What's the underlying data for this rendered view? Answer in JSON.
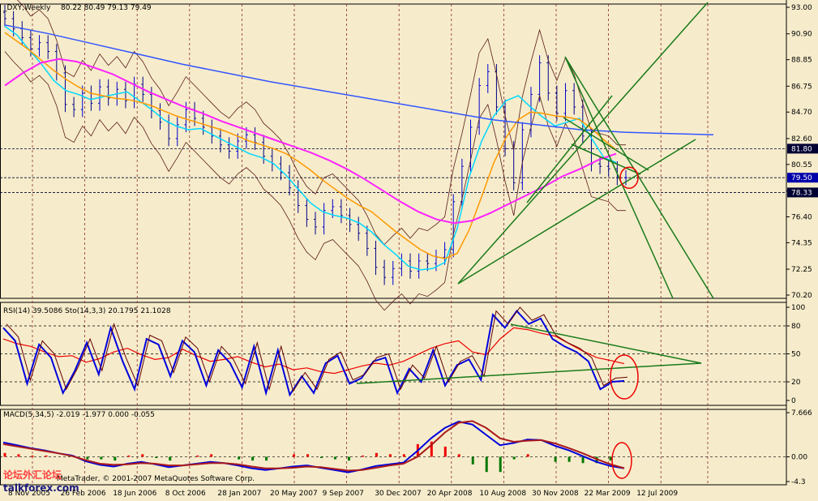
{
  "chart_data": [
    {
      "type": "line",
      "title": "_DXY,Weekly",
      "ohlc_readout": "80.22 80.49 79.13 79.49",
      "yticks": [
        "93.00",
        "90.90",
        "88.85",
        "86.75",
        "84.70",
        "82.60",
        "80.55",
        "78.45",
        "76.40",
        "74.35",
        "72.25",
        "70.20"
      ],
      "ylim": [
        70.2,
        93.0
      ],
      "price_markers": [
        {
          "label": "81.80",
          "value": 81.8
        },
        {
          "label": "79.50",
          "value": 79.5
        },
        {
          "label": "78.33",
          "value": 78.33
        }
      ],
      "xticks": [
        "8 Nov 2005",
        "26 Feb 2006",
        "18 Jun 2006",
        "8 Oct 2006",
        "28 Jan 2007",
        "20 May 2007",
        "9 Sep 2007",
        "30 Dec 2007",
        "20 Apr 2008",
        "10 Aug 2008",
        "30 Nov 2008",
        "22 Mar 2009",
        "12 Jul 2009"
      ],
      "series": [
        {
          "values": [
            92.1,
            91.3,
            90.6,
            89.7,
            90.2,
            89.5,
            87.8,
            85.3,
            84.9,
            86.2,
            85.4,
            86.7,
            85.8,
            86.5,
            85.6,
            86.9,
            86.1,
            84.8,
            83.9,
            82.6,
            83.7,
            84.9,
            84.2,
            83.5,
            82.8,
            82.1,
            81.6,
            82.4,
            82.9,
            82.3,
            81.2,
            80.6,
            79.9,
            78.7,
            77.3,
            76.2,
            75.6,
            76.9,
            77.2,
            76.5,
            75.8,
            75.1,
            73.9,
            72.4,
            71.6,
            72.3,
            72.9,
            72.1,
            72.9,
            72.7,
            73.2,
            73.8,
            77.6,
            80.4,
            83.5,
            86.8,
            87.9,
            85.1,
            81.8,
            79.1,
            83.3,
            86.1,
            88.6,
            86.2,
            84.6,
            86.4,
            85.1,
            82.8,
            80.6,
            80.4,
            80.2,
            79.5,
            79.5
          ]
        },
        {
          "color": "#00d8ff",
          "values": [
            91.5,
            90.8,
            89.6,
            88.5,
            87.2,
            86.4,
            86.1,
            85.7,
            85.9,
            86.1,
            86.3,
            85.6,
            84.9,
            84.1,
            83.6,
            83.3,
            83.4,
            82.9,
            82.4,
            81.9,
            81.4,
            81.1,
            80.6,
            79.7,
            78.6,
            77.5,
            76.8,
            76.5,
            76.3,
            75.9,
            75.2,
            74.2,
            73.4,
            72.5,
            72.2,
            72.3,
            72.8,
            75.5,
            79.6,
            82.4,
            84.4,
            85.6,
            86.0,
            85.1,
            84.3,
            83.6,
            83.9,
            84.2,
            82.6,
            81.1,
            80.7
          ]
        },
        {
          "color": "#ff9900",
          "values": [
            91.0,
            90.3,
            89.6,
            88.8,
            88.0,
            87.3,
            86.7,
            86.2,
            86.0,
            85.8,
            85.7,
            85.5,
            85.2,
            84.8,
            84.4,
            84.1,
            83.8,
            83.5,
            83.2,
            82.8,
            82.4,
            82.1,
            81.8,
            81.4,
            80.8,
            80.1,
            79.3,
            78.6,
            77.9,
            77.3,
            76.8,
            76.0,
            75.2,
            74.5,
            73.8,
            73.3,
            73.1,
            73.5,
            75.4,
            78.0,
            80.7,
            82.7,
            84.1,
            84.7,
            84.6,
            84.4,
            84.3,
            84.1,
            83.4,
            82.5,
            81.7
          ]
        },
        {
          "color": "#ff22ff",
          "values": [
            86.8,
            87.8,
            88.6,
            88.9,
            88.7,
            88.2,
            87.7,
            87.0,
            86.3,
            85.7,
            85.1,
            84.6,
            84.0,
            83.5,
            83.0,
            82.5,
            82.0,
            81.5,
            80.9,
            80.2,
            79.4,
            78.5,
            77.6,
            76.8,
            76.2,
            75.9,
            76.1,
            76.7,
            77.4,
            78.1,
            78.8,
            79.6,
            80.2,
            80.9,
            81.4
          ]
        },
        {
          "color": "#3355ff",
          "values": [
            91.6,
            90.9,
            90.1,
            89.3,
            88.5,
            87.8,
            87.1,
            86.5,
            85.9,
            85.3,
            84.7,
            84.1,
            83.7,
            83.3,
            83.1,
            83.0,
            82.9
          ]
        }
      ],
      "annotations": [
        "trendlines",
        "bollinger bands",
        "red circle highlighting 79.50"
      ]
    },
    {
      "type": "line",
      "title": "RSI(14) 39.5086  Sto(14,3,3) 20.1795 21.1028",
      "yticks": [
        "100",
        "80",
        "50",
        "20",
        "0"
      ],
      "ylim": [
        0,
        100
      ],
      "series": [
        {
          "name": "RSI(14)",
          "color": "#ee0000",
          "values": [
            66,
            61,
            58,
            52,
            47,
            48,
            41,
            45,
            52,
            56,
            49,
            44,
            46,
            55,
            48,
            42,
            44,
            47,
            41,
            36,
            39,
            33,
            35,
            31,
            29,
            33,
            37,
            40,
            38,
            42,
            49,
            56,
            61,
            64,
            52,
            49,
            66,
            78,
            76,
            72,
            69,
            61,
            53,
            46,
            43,
            39.5
          ]
        },
        {
          "name": "Sto(14,3,3)",
          "color": "#0000dd",
          "values": [
            78,
            64,
            18,
            60,
            46,
            8,
            32,
            62,
            28,
            78,
            42,
            12,
            66,
            60,
            26,
            64,
            52,
            16,
            54,
            40,
            14,
            58,
            8,
            54,
            6,
            26,
            8,
            40,
            48,
            18,
            24,
            42,
            46,
            8,
            34,
            20,
            54,
            16,
            38,
            44,
            22,
            92,
            78,
            96,
            82,
            88,
            66,
            58,
            52,
            42,
            12,
            20,
            21
          ]
        }
      ]
    },
    {
      "type": "bar",
      "title": "MACD(5,34,5) -2.019 -1.977 0.000 -0.055",
      "yticks": [
        "7.666",
        "0.00",
        "-4.3"
      ],
      "ylim": [
        -4.3,
        7.666
      ],
      "series": [
        {
          "name": "MACD",
          "color": "#0000dd",
          "values": [
            2.5,
            2.0,
            1.5,
            1.1,
            0.6,
            0.2,
            -0.8,
            -1.4,
            -1.7,
            -1.2,
            -0.9,
            -1.3,
            -1.8,
            -1.5,
            -1.2,
            -0.9,
            -1.1,
            -1.5,
            -2.0,
            -2.3,
            -2.0,
            -1.7,
            -1.5,
            -1.9,
            -2.3,
            -2.7,
            -2.2,
            -1.6,
            -1.3,
            -1.0,
            1.0,
            3.2,
            5.0,
            6.1,
            5.6,
            3.8,
            2.0,
            2.4,
            3.0,
            2.9,
            1.9,
            1.1,
            0.1,
            -0.9,
            -1.6,
            -2.0
          ]
        },
        {
          "name": "Signal",
          "color": "#aa1a1a",
          "values": [
            2.2,
            1.8,
            1.4,
            1.0,
            0.6,
            0.1,
            -0.6,
            -1.2,
            -1.4,
            -1.3,
            -1.1,
            -1.2,
            -1.5,
            -1.5,
            -1.3,
            -1.1,
            -1.1,
            -1.3,
            -1.7,
            -2.0,
            -2.0,
            -1.9,
            -1.7,
            -1.8,
            -2.1,
            -2.4,
            -2.3,
            -1.9,
            -1.5,
            -1.2,
            0.0,
            2.0,
            4.2,
            5.9,
            6.2,
            5.0,
            3.2,
            2.6,
            2.8,
            2.9,
            2.3,
            1.5,
            0.6,
            -0.4,
            -1.3,
            -1.98
          ]
        },
        {
          "name": "Histogram",
          "values": [
            0.3,
            0.2,
            0.1,
            0.1,
            0.0,
            0.1,
            -0.2,
            -0.2,
            -0.3,
            0.1,
            0.2,
            -0.1,
            -0.3,
            0.0,
            0.1,
            0.2,
            0.0,
            -0.2,
            -0.3,
            -0.3,
            0.0,
            0.2,
            0.2,
            -0.1,
            -0.2,
            -0.3,
            0.1,
            0.3,
            0.2,
            0.2,
            1.0,
            1.2,
            0.8,
            0.2,
            -0.6,
            -1.2,
            -1.2,
            -0.2,
            0.2,
            0.0,
            -0.4,
            -0.4,
            -0.5,
            -0.5,
            -0.3,
            0.0
          ]
        }
      ]
    }
  ],
  "copyright": "MetaTrader, © 2001-2007 MetaQuotes Software Corp.",
  "watermark": {
    "cn": "论坛外汇论坛",
    "site": "talkforex.com"
  },
  "colors": {
    "background": "#f6eccb",
    "grid": "#8a2a2a",
    "bull": "#0000cc",
    "bear": "#000088",
    "trend": "#1a7a1a",
    "circle": "#ee0000"
  }
}
